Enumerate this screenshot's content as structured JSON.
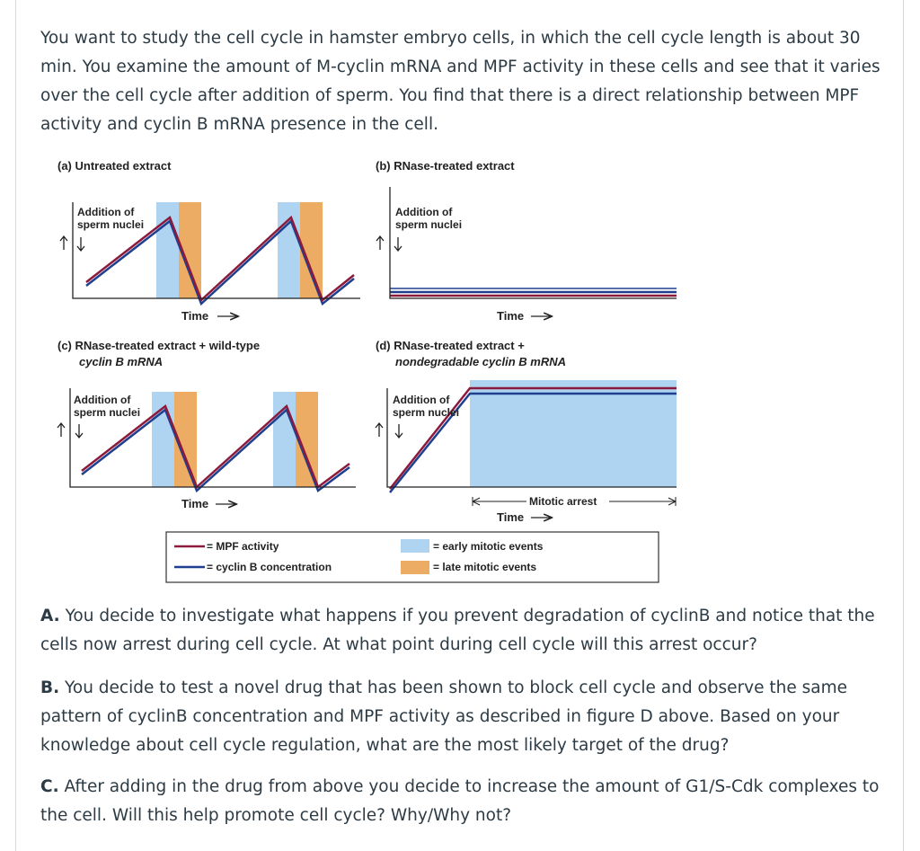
{
  "intro": "You want to study the cell cycle in hamster embryo cells, in which the cell cycle length is about 30 min. You examine the amount of M-cyclin mRNA and MPF activity in these cells and see that it varies over the cell cycle after addition of sperm. You find that there is a direct relationship between MPF activity and cyclin B mRNA presence in the cell.",
  "figure": {
    "panel_a": {
      "title": "(a) Untreated extract",
      "annot_line1": "Addition of",
      "annot_line2": "sperm nuclei",
      "xlabel": "Time"
    },
    "panel_b": {
      "title": "(b) RNase-treated extract",
      "annot_line1": "Addition of",
      "annot_line2": "sperm nuclei",
      "xlabel": "Time"
    },
    "panel_c": {
      "title_line1": "(c) RNase-treated extract + wild-type",
      "title_line2": "cyclin B mRNA",
      "annot_line1": "Addition of",
      "annot_line2": "sperm nuclei",
      "xlabel": "Time"
    },
    "panel_d": {
      "title_line1": "(d) RNase-treated extract +",
      "title_line2": "nondegradable cyclin B mRNA",
      "annot_line1": "Addition of",
      "annot_line2": "sperm nuclei",
      "xlabel": "Time",
      "arrest_label": "Mitotic arrest"
    },
    "legend": {
      "mpf": "= MPF activity",
      "cyclin": "= cyclin B concentration",
      "early": "= early mitotic events",
      "late": "= late mitotic events"
    },
    "colors": {
      "mpf": "#8b1a3c",
      "cyclin": "#1f3f8f",
      "early": "#aed4f2",
      "late": "#ecac64"
    }
  },
  "questions": {
    "a_label": "A.",
    "a_text": "You decide to investigate what happens if you prevent degradation of cyclinB and notice that the cells now arrest during cell cycle. At what point during cell cycle will this arrest occur?",
    "b_label": "B.",
    "b_text": "You decide to test a novel drug that has been shown to block cell cycle and observe the same pattern of cyclinB concentration and MPF activity as described in figure D above. Based on your knowledge about cell cycle regulation, what are the most likely target of the drug?",
    "c_label": "C.",
    "c_text": "After adding in the drug from above you decide to increase the amount of G1/S-Cdk complexes to the cell. Will this help promote cell cycle? Why/Why not?"
  }
}
